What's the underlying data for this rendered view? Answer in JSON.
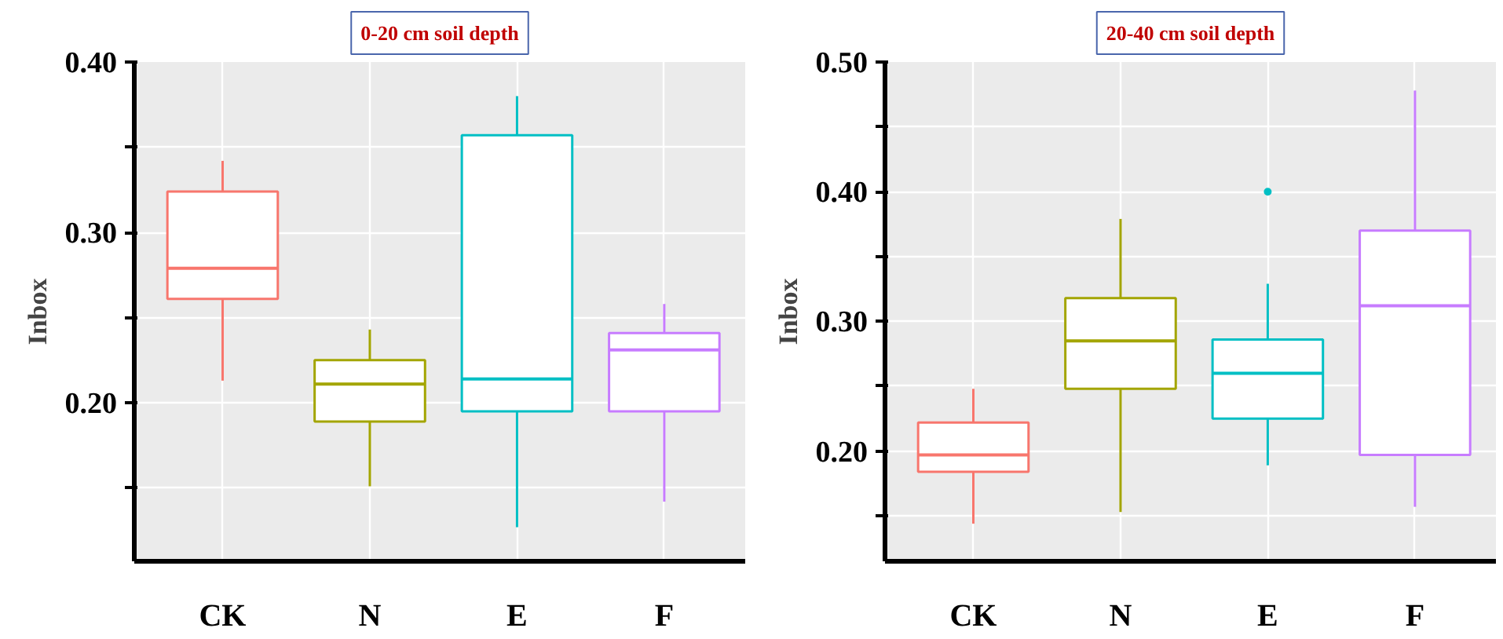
{
  "chart_data": [
    {
      "type": "box",
      "title": "0-20 cm soil depth",
      "ylabel": "Inbox",
      "categories": [
        "CK",
        "N",
        "E",
        "F"
      ],
      "colors": [
        "#f8766d",
        "#a3a500",
        "#00bfc4",
        "#c77cff"
      ],
      "boxes": [
        {
          "low": 0.213,
          "q1": 0.261,
          "median": 0.279,
          "q3": 0.324,
          "high": 0.342
        },
        {
          "low": 0.151,
          "q1": 0.189,
          "median": 0.211,
          "q3": 0.225,
          "high": 0.243
        },
        {
          "low": 0.127,
          "q1": 0.195,
          "median": 0.214,
          "q3": 0.357,
          "high": 0.38
        },
        {
          "low": 0.142,
          "q1": 0.195,
          "median": 0.231,
          "q3": 0.241,
          "high": 0.258
        }
      ],
      "ylim": [
        0.107,
        0.4
      ],
      "yticks": [
        {
          "value": 0.15,
          "label": null
        },
        {
          "value": 0.2,
          "label": "0.20"
        },
        {
          "value": 0.25,
          "label": null
        },
        {
          "value": 0.3,
          "label": "0.30"
        },
        {
          "value": 0.35,
          "label": null
        },
        {
          "value": 0.4,
          "label": "0.40"
        }
      ],
      "grid": true
    },
    {
      "type": "box",
      "title": "20-40 cm soil depth",
      "ylabel": "Inbox",
      "categories": [
        "CK",
        "N",
        "E",
        "F"
      ],
      "colors": [
        "#f8766d",
        "#a3a500",
        "#00bfc4",
        "#c77cff"
      ],
      "boxes": [
        {
          "low": 0.144,
          "q1": 0.184,
          "median": 0.197,
          "q3": 0.222,
          "high": 0.248
        },
        {
          "low": 0.153,
          "q1": 0.248,
          "median": 0.285,
          "q3": 0.318,
          "high": 0.379
        },
        {
          "low": 0.189,
          "q1": 0.225,
          "median": 0.26,
          "q3": 0.286,
          "high": 0.329,
          "outliers": [
            0.4
          ]
        },
        {
          "low": 0.157,
          "q1": 0.197,
          "median": 0.312,
          "q3": 0.37,
          "high": 0.478
        }
      ],
      "ylim": [
        0.115,
        0.5
      ],
      "yticks": [
        {
          "value": 0.15,
          "label": null
        },
        {
          "value": 0.2,
          "label": "0.20"
        },
        {
          "value": 0.25,
          "label": null
        },
        {
          "value": 0.3,
          "label": "0.30"
        },
        {
          "value": 0.35,
          "label": null
        },
        {
          "value": 0.4,
          "label": "0.40"
        },
        {
          "value": 0.45,
          "label": null
        },
        {
          "value": 0.5,
          "label": "0.50"
        }
      ],
      "grid": true
    }
  ]
}
